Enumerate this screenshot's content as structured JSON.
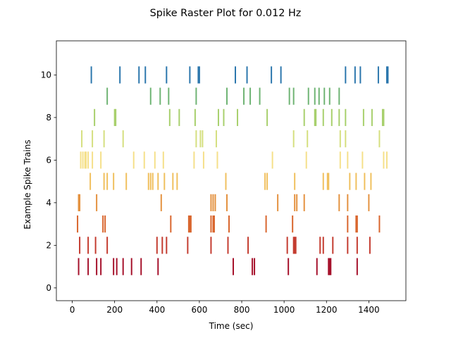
{
  "chart_data": {
    "type": "scatter",
    "title": "Spike Raster Plot for 0.012 Hz",
    "xlabel": "Time (sec)",
    "ylabel": "Example Spike Trains",
    "xlim": [
      -75,
      1575
    ],
    "ylim": [
      -0.6,
      11.6
    ],
    "x_ticks": [
      0,
      200,
      400,
      600,
      800,
      1000,
      1200,
      1400
    ],
    "y_ticks": [
      0,
      2,
      4,
      6,
      8,
      10
    ],
    "grid": false,
    "legend": "none",
    "series": [
      {
        "train": 1,
        "color": "#a6122c",
        "spikes": [
          30,
          75,
          115,
          135,
          195,
          210,
          240,
          280,
          325,
          405,
          760,
          850,
          860,
          1020,
          1155,
          1210,
          1215,
          1220,
          1345
        ]
      },
      {
        "train": 2,
        "color": "#c43c30",
        "spikes": [
          35,
          75,
          110,
          165,
          400,
          425,
          445,
          545,
          655,
          735,
          830,
          1015,
          1045,
          1050,
          1055,
          1170,
          1185,
          1230,
          1300,
          1345,
          1405
        ]
      },
      {
        "train": 3,
        "color": "#d9662e",
        "spikes": [
          25,
          145,
          155,
          465,
          550,
          555,
          560,
          655,
          665,
          670,
          740,
          915,
          1040,
          1300,
          1340,
          1345,
          1450
        ]
      },
      {
        "train": 4,
        "color": "#e49240",
        "spikes": [
          30,
          35,
          115,
          420,
          655,
          665,
          675,
          730,
          970,
          1050,
          1060,
          1095,
          1260,
          1300,
          1400
        ]
      },
      {
        "train": 5,
        "color": "#f0c05e",
        "spikes": [
          85,
          150,
          165,
          195,
          255,
          360,
          370,
          380,
          405,
          435,
          475,
          495,
          725,
          910,
          920,
          1050,
          1185,
          1205,
          1210,
          1310,
          1340,
          1380,
          1410
        ]
      },
      {
        "train": 6,
        "color": "#f5e08a",
        "spikes": [
          40,
          50,
          60,
          65,
          75,
          95,
          135,
          290,
          340,
          390,
          430,
          575,
          620,
          685,
          945,
          1105,
          1265,
          1300,
          1370,
          1470,
          1485
        ]
      },
      {
        "train": 7,
        "color": "#d5df7f",
        "spikes": [
          45,
          95,
          150,
          240,
          585,
          605,
          615,
          680,
          1045,
          1110,
          1265,
          1290,
          1450
        ]
      },
      {
        "train": 8,
        "color": "#a8d06d",
        "spikes": [
          105,
          200,
          205,
          460,
          505,
          580,
          690,
          715,
          780,
          920,
          1095,
          1145,
          1150,
          1185,
          1225,
          1260,
          1290,
          1375,
          1415,
          1465,
          1470
        ]
      },
      {
        "train": 9,
        "color": "#6fb474",
        "spikes": [
          165,
          370,
          415,
          455,
          585,
          730,
          810,
          840,
          885,
          1025,
          1045,
          1115,
          1145,
          1165,
          1190,
          1215,
          1260
        ]
      },
      {
        "train": 10,
        "color": "#2c77ad",
        "spikes": [
          90,
          225,
          315,
          345,
          445,
          555,
          595,
          600,
          770,
          825,
          940,
          985,
          1290,
          1335,
          1360,
          1445,
          1485,
          1490
        ]
      }
    ]
  }
}
